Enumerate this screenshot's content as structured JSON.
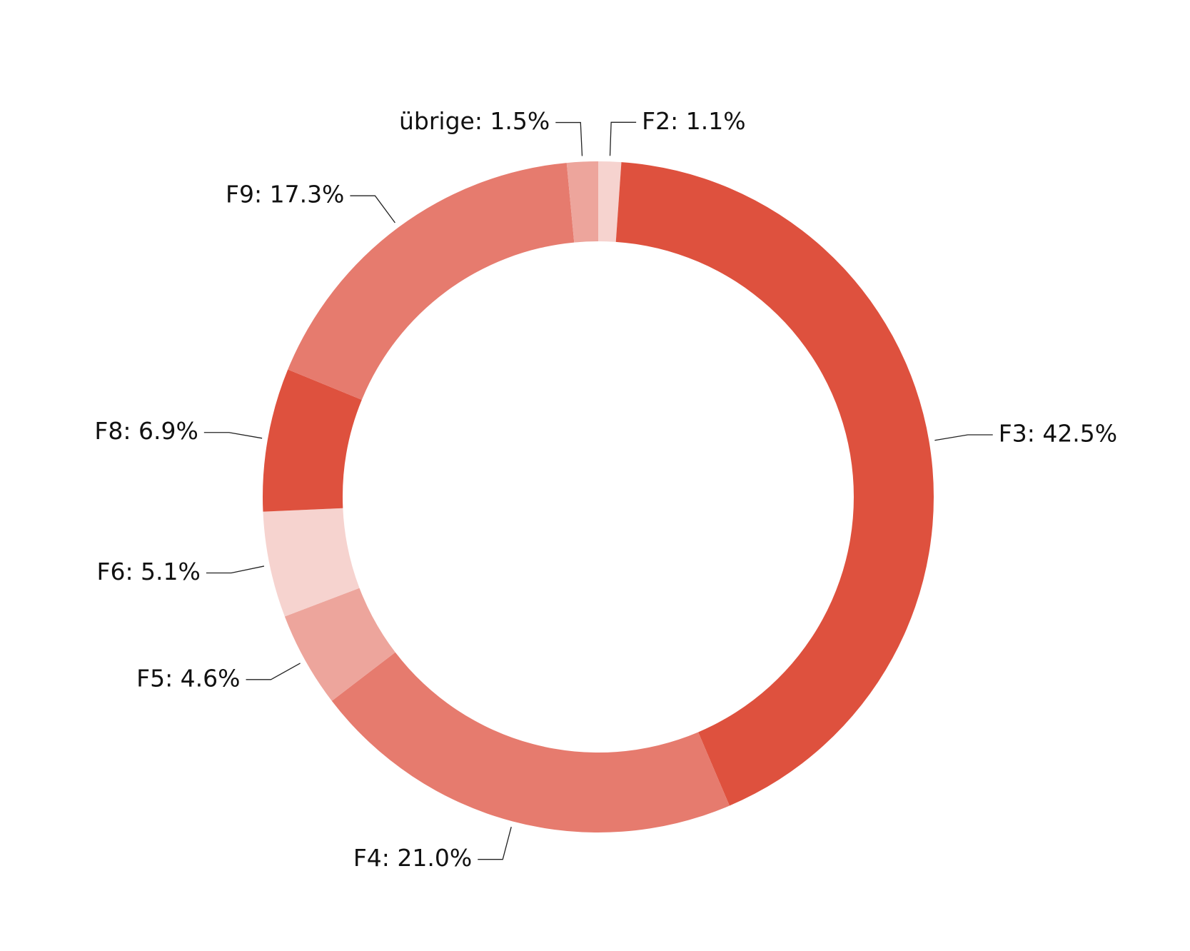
{
  "chart_data": {
    "type": "donut",
    "categories": [
      "F2: 1.1%",
      "F3: 42.5%",
      "F4: 21.0%",
      "F5: 4.6%",
      "F6: 5.1%",
      "F8: 6.9%",
      "F9: 17.3%",
      "übrige: 1.5%"
    ],
    "values": [
      1.1,
      42.5,
      21.0,
      4.6,
      5.1,
      6.9,
      17.3,
      1.5
    ],
    "colors": [
      "#f6d3cf",
      "#de513e",
      "#e67b6e",
      "#eda59c",
      "#f6d3cf",
      "#de513e",
      "#e67b6e",
      "#eda59c"
    ]
  }
}
